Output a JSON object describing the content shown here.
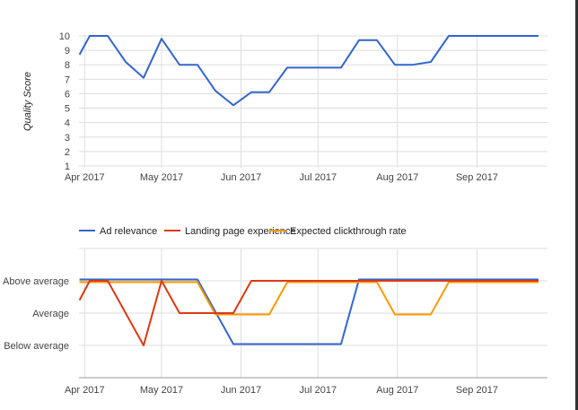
{
  "chart_data": [
    {
      "type": "line",
      "title": "",
      "xlabel": "",
      "ylabel": "Quality Score",
      "ylim": [
        1,
        10
      ],
      "yticks": [
        "1",
        "2",
        "3",
        "4",
        "5",
        "6",
        "7",
        "8",
        "9",
        "10"
      ],
      "xticks": [
        {
          "date": "2017-04-01",
          "label": "Apr 2017"
        },
        {
          "date": "2017-05-01",
          "label": "May 2017"
        },
        {
          "date": "2017-06-01",
          "label": "Jun 2017"
        },
        {
          "date": "2017-07-01",
          "label": "Jul 2017"
        },
        {
          "date": "2017-08-01",
          "label": "Aug 2017"
        },
        {
          "date": "2017-09-01",
          "label": "Sep 2017"
        }
      ],
      "grid": true,
      "x": [
        "2017-03-30",
        "2017-04-03",
        "2017-04-10",
        "2017-04-17",
        "2017-04-24",
        "2017-05-01",
        "2017-05-08",
        "2017-05-15",
        "2017-05-22",
        "2017-05-29",
        "2017-06-05",
        "2017-06-12",
        "2017-06-19",
        "2017-06-26",
        "2017-07-03",
        "2017-07-10",
        "2017-07-17",
        "2017-07-24",
        "2017-07-31",
        "2017-08-07",
        "2017-08-14",
        "2017-08-21",
        "2017-08-28",
        "2017-09-04",
        "2017-09-11",
        "2017-09-18",
        "2017-09-25"
      ],
      "series": [
        {
          "color": "#3366cc",
          "values": [
            8.7,
            10,
            10,
            8.2,
            7.1,
            9.8,
            8,
            8,
            6.2,
            5.2,
            6.1,
            6.1,
            7.8,
            7.8,
            7.8,
            7.8,
            9.7,
            9.7,
            8,
            8,
            8.2,
            10,
            10,
            10,
            10,
            10,
            10
          ]
        }
      ]
    },
    {
      "type": "line",
      "title": "",
      "xlabel": "",
      "ylabel": "",
      "ylim": [
        0,
        4
      ],
      "ycategories": [
        {
          "value": 1,
          "label": "Below average"
        },
        {
          "value": 2,
          "label": "Average"
        },
        {
          "value": 3,
          "label": "Above average"
        }
      ],
      "xticks": [
        {
          "date": "2017-04-01",
          "label": "Apr 2017"
        },
        {
          "date": "2017-05-01",
          "label": "May 2017"
        },
        {
          "date": "2017-06-01",
          "label": "Jun 2017"
        },
        {
          "date": "2017-07-01",
          "label": "Jul 2017"
        },
        {
          "date": "2017-08-01",
          "label": "Aug 2017"
        },
        {
          "date": "2017-09-01",
          "label": "Sep 2017"
        }
      ],
      "grid": true,
      "legend_position": "top-left",
      "x": [
        "2017-03-30",
        "2017-04-03",
        "2017-04-10",
        "2017-04-17",
        "2017-04-24",
        "2017-05-01",
        "2017-05-08",
        "2017-05-15",
        "2017-05-22",
        "2017-05-29",
        "2017-06-05",
        "2017-06-12",
        "2017-06-19",
        "2017-06-26",
        "2017-07-03",
        "2017-07-10",
        "2017-07-17",
        "2017-07-24",
        "2017-07-31",
        "2017-08-07",
        "2017-08-14",
        "2017-08-21",
        "2017-08-28",
        "2017-09-04",
        "2017-09-11",
        "2017-09-18",
        "2017-09-25"
      ],
      "series": [
        {
          "name": "Ad relevance",
          "color": "#3366cc",
          "values": [
            3,
            3,
            3,
            3,
            3,
            3,
            3,
            3,
            2,
            1,
            1,
            1,
            1,
            1,
            1,
            1,
            3,
            3,
            3,
            3,
            3,
            3,
            3,
            3,
            3,
            3,
            3
          ]
        },
        {
          "name": "Landing page experience",
          "color": "#dc3912",
          "values": [
            2.4,
            3,
            3,
            2,
            1,
            3,
            2,
            2,
            2,
            2,
            3,
            3,
            3,
            3,
            3,
            3,
            3,
            3,
            3,
            3,
            3,
            3,
            3,
            3,
            3,
            3,
            3
          ]
        },
        {
          "name": "Expected clickthrough rate",
          "color": "#ff9900",
          "values": [
            3,
            3,
            3,
            3,
            3,
            3,
            3,
            3,
            2,
            2,
            2,
            2,
            3,
            3,
            3,
            3,
            3,
            3,
            2,
            2,
            2,
            3,
            3,
            3,
            3,
            3,
            3
          ]
        }
      ]
    }
  ]
}
